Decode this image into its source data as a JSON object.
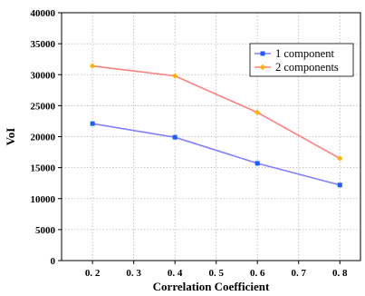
{
  "chart_data": {
    "type": "line",
    "title": "",
    "xlabel": "Correlation Coefficient",
    "ylabel": "VoI",
    "x": [
      0.2,
      0.4,
      0.6,
      0.8
    ],
    "xticks": [
      "0. 2",
      "0. 3",
      "0. 4",
      "0. 5",
      "0. 6",
      "0. 7",
      "0. 8"
    ],
    "xtick_values": [
      0.2,
      0.3,
      0.4,
      0.5,
      0.6,
      0.7,
      0.8
    ],
    "xlim": [
      0.125,
      0.85
    ],
    "yticks": [
      "0",
      "5000",
      "10000",
      "15000",
      "20000",
      "25000",
      "30000",
      "35000",
      "40000"
    ],
    "ytick_values": [
      0,
      5000,
      10000,
      15000,
      20000,
      25000,
      30000,
      35000,
      40000
    ],
    "ylim": [
      0,
      40000
    ],
    "grid": true,
    "legend_position": "top-right",
    "series": [
      {
        "name": "1 component",
        "values": [
          22100,
          19900,
          15700,
          12200
        ],
        "line_color": "#8080ff",
        "marker_color": "#1e5cff",
        "marker": "square"
      },
      {
        "name": "2 components",
        "values": [
          31400,
          29800,
          23900,
          16500
        ],
        "line_color": "#ff7f7f",
        "marker_color": "#ffb300",
        "marker": "diamond"
      }
    ]
  }
}
